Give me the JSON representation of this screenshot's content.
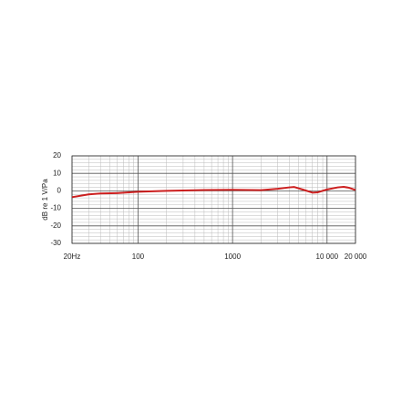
{
  "chart_data": {
    "type": "line",
    "ylabel": "dB re 1 V/Pa",
    "log_x": true,
    "x": [
      20,
      30,
      40,
      60,
      100,
      200,
      500,
      1000,
      2000,
      3000,
      4000,
      4500,
      5500,
      7000,
      8000,
      10000,
      13000,
      15000,
      17000,
      20000
    ],
    "series": [
      {
        "color": "#cc1f1f",
        "values": [
          -3.6,
          -2,
          -1.5,
          -1.3,
          -0.5,
          0,
          0.5,
          0.6,
          0.4,
          1.2,
          2,
          2.2,
          0.8,
          -1,
          -0.8,
          0.8,
          2,
          2.3,
          1.8,
          0.5
        ]
      }
    ],
    "xlim": [
      20,
      20000
    ],
    "ylim": [
      -30,
      20
    ],
    "xticks": [
      {
        "value": 20,
        "label": "20Hz"
      },
      100,
      1000,
      {
        "value": 10000,
        "label": "10 000"
      },
      {
        "value": 20000,
        "label": "20 000"
      }
    ],
    "yticks": [
      -30,
      -20,
      -10,
      0,
      10,
      20
    ],
    "minor_xticks": [
      30,
      40,
      50,
      60,
      70,
      80,
      90,
      200,
      300,
      400,
      500,
      600,
      700,
      800,
      900,
      2000,
      3000,
      4000,
      5000,
      6000,
      7000,
      8000,
      9000
    ],
    "minor_yticks": [
      -28,
      -26,
      -24,
      -22,
      -18,
      -16,
      -14,
      -12,
      -8,
      -6,
      -4,
      -2,
      2,
      4,
      6,
      8,
      12,
      14,
      16,
      18
    ],
    "grid": true
  }
}
